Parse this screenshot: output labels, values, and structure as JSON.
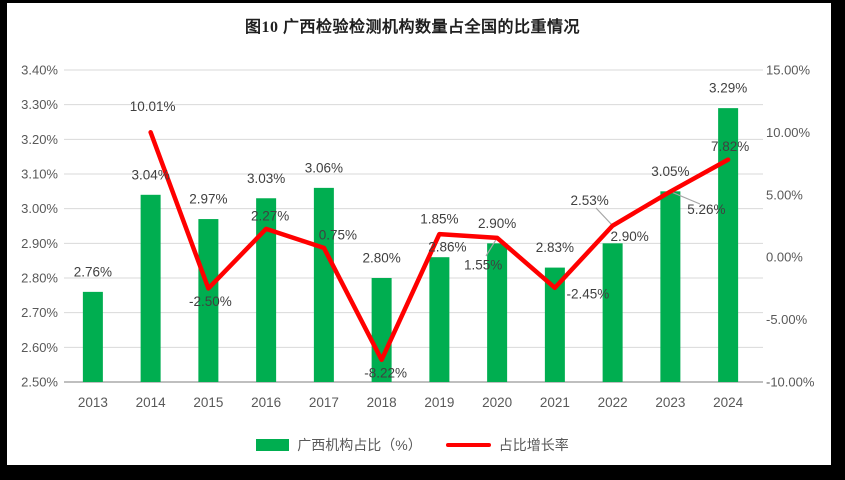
{
  "chart_data": {
    "type": "combo-bar-line",
    "title": "图10 广西检验检测机构数量占全国的比重情况",
    "categories": [
      "2013",
      "2014",
      "2015",
      "2016",
      "2017",
      "2018",
      "2019",
      "2020",
      "2021",
      "2022",
      "2023",
      "2024"
    ],
    "series": [
      {
        "name": "广西机构占比（%）",
        "type": "bar",
        "axis": "left",
        "values": [
          2.76,
          3.04,
          2.97,
          3.03,
          3.06,
          2.8,
          2.86,
          2.9,
          2.83,
          2.9,
          3.05,
          3.29
        ],
        "labels": [
          "2.76%",
          "3.04%",
          "2.97%",
          "3.03%",
          "3.06%",
          "2.80%",
          "2.86%",
          "2.90%",
          "2.83%",
          "2.90%",
          "3.05%",
          "3.29%"
        ]
      },
      {
        "name": "占比增长率",
        "type": "line",
        "axis": "right",
        "values": [
          null,
          10.01,
          -2.5,
          2.27,
          0.75,
          -8.22,
          1.85,
          1.55,
          -2.45,
          2.53,
          5.26,
          7.82
        ],
        "labels": [
          null,
          "10.01%",
          "-2.50%",
          "2.27%",
          "0.75%",
          "-8.22%",
          "1.85%",
          "1.55%",
          "-2.45%",
          "2.53%",
          "5.26%",
          "7.82%"
        ]
      }
    ],
    "left_axis": {
      "min": 2.5,
      "max": 3.4,
      "step": 0.1,
      "ticks": [
        "3.40%",
        "3.30%",
        "3.20%",
        "3.10%",
        "3.00%",
        "2.90%",
        "2.80%",
        "2.70%",
        "2.60%",
        "2.50%"
      ]
    },
    "right_axis": {
      "min": -10,
      "max": 15,
      "step": 5,
      "ticks": [
        "15.00%",
        "10.00%",
        "5.00%",
        "0.00%",
        "-5.00%",
        "-10.00%"
      ]
    },
    "legend": [
      "广西机构占比（%）",
      "占比增长率"
    ],
    "grid": true,
    "legend_position": "bottom",
    "colors": {
      "bar": "#00AE50",
      "line": "#FF0000",
      "gridline": "#D9D9D9",
      "axis_line": "#BFBFBF",
      "tick_text": "#595959",
      "data_label": "#404040",
      "leader_line": "#A6A6A6"
    }
  }
}
